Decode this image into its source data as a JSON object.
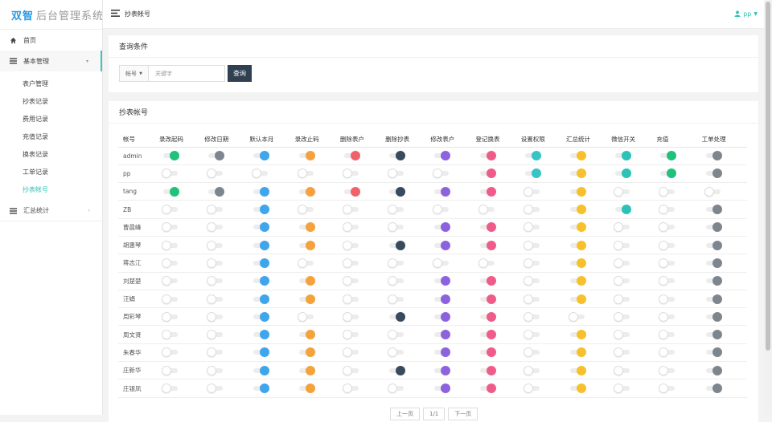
{
  "app": {
    "logo_bold": "双智",
    "logo_rest": "后台管理系统",
    "page_title": "抄表帐号",
    "user": "pp"
  },
  "menu": [
    {
      "label": "首页",
      "icon": "home-icon"
    },
    {
      "label": "基本管理",
      "icon": "list-icon",
      "expanded": true
    },
    {
      "label": "汇总统计",
      "icon": "list-icon"
    }
  ],
  "submenu": [
    "表户管理",
    "抄表记录",
    "费用记录",
    "充值记录",
    "换表记录",
    "工单记录",
    "抄表帐号"
  ],
  "search": {
    "title": "查询条件",
    "select": "帐号",
    "placeholder": "关键字",
    "button": "查询"
  },
  "table": {
    "title": "抄表帐号",
    "name_header": "帐号",
    "columns": [
      {
        "label": "录改起码",
        "color": "#1ec27a"
      },
      {
        "label": "修改日期",
        "color": "#7d868f"
      },
      {
        "label": "默认本月",
        "color": "#3fa5ec"
      },
      {
        "label": "录改止码",
        "color": "#f5a23c"
      },
      {
        "label": "删除表户",
        "color": "#f0626a"
      },
      {
        "label": "删除抄表",
        "color": "#374a5e"
      },
      {
        "label": "修改表户",
        "color": "#8c63dc"
      },
      {
        "label": "登记换表",
        "color": "#f05c8a"
      },
      {
        "label": "设置权限",
        "color": "#36c4c4"
      },
      {
        "label": "汇总统计",
        "color": "#f6c12c"
      },
      {
        "label": "微信开关",
        "color": "#2cc2b7"
      },
      {
        "label": "充值",
        "color": "#1ec27a"
      },
      {
        "label": "工单处理",
        "color": "#7d868f"
      }
    ],
    "rows": [
      {
        "name": "admin",
        "v": [
          1,
          1,
          1,
          1,
          1,
          1,
          1,
          1,
          1,
          1,
          1,
          1,
          1
        ]
      },
      {
        "name": "pp",
        "v": [
          0,
          0,
          0,
          0,
          0,
          0,
          0,
          1,
          1,
          1,
          1,
          1,
          1
        ]
      },
      {
        "name": "tang",
        "v": [
          1,
          1,
          1,
          1,
          1,
          1,
          1,
          1,
          0,
          1,
          0,
          0,
          0
        ]
      },
      {
        "name": "ZB",
        "v": [
          0,
          0,
          1,
          0,
          0,
          0,
          0,
          0,
          0,
          1,
          1,
          0,
          1
        ]
      },
      {
        "name": "曹晨峰",
        "v": [
          0,
          0,
          1,
          1,
          0,
          0,
          1,
          1,
          0,
          1,
          0,
          0,
          1
        ]
      },
      {
        "name": "胡惠琴",
        "v": [
          0,
          0,
          1,
          1,
          0,
          1,
          1,
          1,
          0,
          1,
          0,
          0,
          1
        ]
      },
      {
        "name": "蒋志江",
        "v": [
          0,
          0,
          1,
          0,
          0,
          0,
          0,
          0,
          0,
          1,
          0,
          0,
          1
        ]
      },
      {
        "name": "刘楚楚",
        "v": [
          0,
          0,
          1,
          1,
          0,
          0,
          1,
          1,
          0,
          1,
          0,
          0,
          1
        ]
      },
      {
        "name": "汪娟",
        "v": [
          0,
          0,
          1,
          1,
          0,
          0,
          1,
          1,
          0,
          1,
          0,
          0,
          1
        ]
      },
      {
        "name": "周彩琴",
        "v": [
          0,
          0,
          1,
          0,
          0,
          1,
          1,
          1,
          0,
          0,
          0,
          0,
          1
        ]
      },
      {
        "name": "周文贤",
        "v": [
          0,
          0,
          1,
          1,
          0,
          0,
          1,
          1,
          0,
          1,
          0,
          0,
          1
        ]
      },
      {
        "name": "朱春华",
        "v": [
          0,
          0,
          1,
          1,
          0,
          0,
          1,
          1,
          0,
          1,
          0,
          0,
          1
        ]
      },
      {
        "name": "庄新华",
        "v": [
          0,
          0,
          1,
          1,
          0,
          1,
          1,
          1,
          0,
          1,
          0,
          0,
          1
        ]
      },
      {
        "name": "庄银凤",
        "v": [
          0,
          0,
          1,
          1,
          0,
          0,
          1,
          1,
          0,
          1,
          0,
          0,
          1
        ]
      }
    ]
  },
  "pager": {
    "prev": "上一页",
    "page": "1/1",
    "next": "下一页"
  }
}
